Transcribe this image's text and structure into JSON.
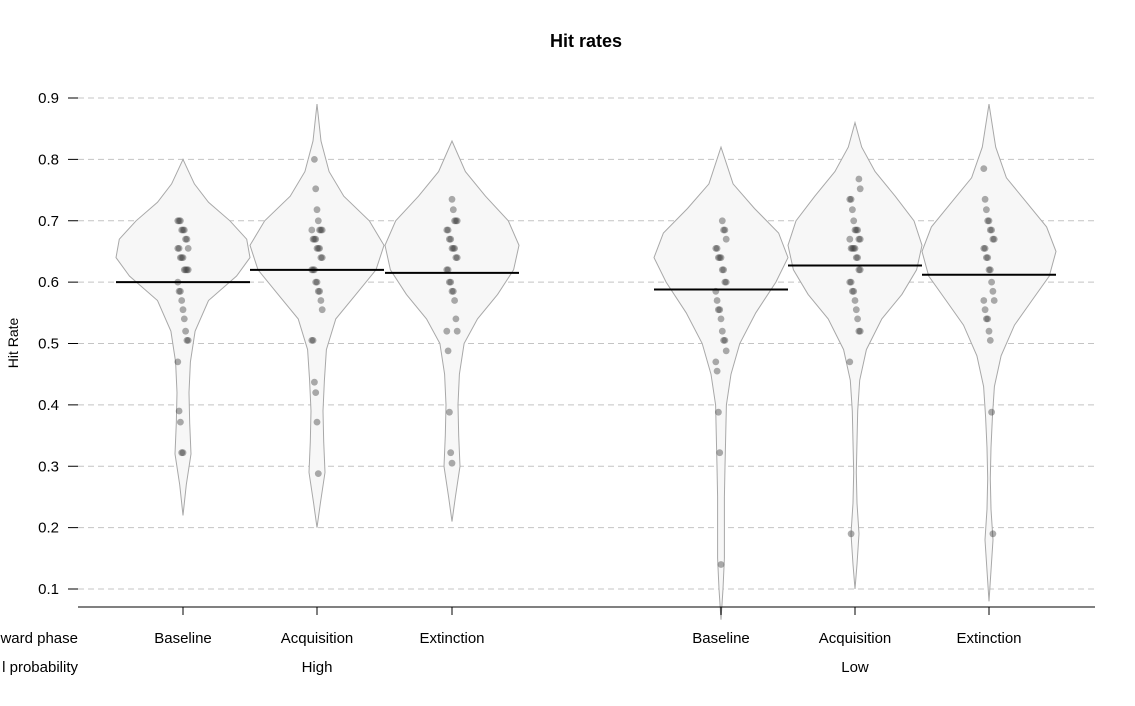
{
  "chart_data": {
    "type": "pirate",
    "title": "Hit rates",
    "ylabel": "Hit Rate",
    "xlabel": "",
    "ylim": [
      0.07,
      0.93
    ],
    "yticks": [
      0.1,
      0.2,
      0.3,
      0.4,
      0.5,
      0.6,
      0.7,
      0.8,
      0.9
    ],
    "grid": "horizontal-dashed",
    "row_labels": [
      "ward phase",
      "l probability"
    ],
    "groups": [
      {
        "label": "High",
        "categories": [
          {
            "name": "Baseline",
            "mean": 0.6,
            "range": [
              0.22,
              0.8
            ],
            "points": [
              0.7,
              0.7,
              0.7,
              0.685,
              0.685,
              0.685,
              0.67,
              0.67,
              0.655,
              0.655,
              0.655,
              0.64,
              0.64,
              0.64,
              0.62,
              0.62,
              0.62,
              0.62,
              0.6,
              0.585,
              0.585,
              0.57,
              0.555,
              0.54,
              0.52,
              0.505,
              0.505,
              0.47,
              0.39,
              0.372,
              0.322,
              0.322
            ],
            "density": [
              [
                0.22,
                0.0
              ],
              [
                0.27,
                0.05
              ],
              [
                0.32,
                0.12
              ],
              [
                0.37,
                0.1
              ],
              [
                0.42,
                0.09
              ],
              [
                0.47,
                0.11
              ],
              [
                0.52,
                0.18
              ],
              [
                0.57,
                0.38
              ],
              [
                0.61,
                0.8
              ],
              [
                0.64,
                1.0
              ],
              [
                0.67,
                0.95
              ],
              [
                0.7,
                0.7
              ],
              [
                0.73,
                0.38
              ],
              [
                0.76,
                0.17
              ],
              [
                0.8,
                0.0
              ]
            ]
          },
          {
            "name": "Acquisition",
            "mean": 0.62,
            "range": [
              0.2,
              0.89
            ],
            "points": [
              0.8,
              0.752,
              0.718,
              0.7,
              0.685,
              0.685,
              0.685,
              0.685,
              0.67,
              0.67,
              0.67,
              0.655,
              0.655,
              0.655,
              0.64,
              0.64,
              0.62,
              0.62,
              0.62,
              0.6,
              0.6,
              0.585,
              0.585,
              0.57,
              0.555,
              0.505,
              0.505,
              0.437,
              0.42,
              0.372,
              0.288
            ],
            "density": [
              [
                0.2,
                0.0
              ],
              [
                0.24,
                0.05
              ],
              [
                0.29,
                0.12
              ],
              [
                0.34,
                0.1
              ],
              [
                0.39,
                0.09
              ],
              [
                0.44,
                0.11
              ],
              [
                0.49,
                0.14
              ],
              [
                0.54,
                0.28
              ],
              [
                0.58,
                0.58
              ],
              [
                0.62,
                0.88
              ],
              [
                0.66,
                1.0
              ],
              [
                0.7,
                0.78
              ],
              [
                0.74,
                0.4
              ],
              [
                0.78,
                0.18
              ],
              [
                0.83,
                0.06
              ],
              [
                0.89,
                0.0
              ]
            ]
          },
          {
            "name": "Extinction",
            "mean": 0.615,
            "range": [
              0.21,
              0.83
            ],
            "points": [
              0.735,
              0.718,
              0.7,
              0.7,
              0.7,
              0.685,
              0.685,
              0.67,
              0.67,
              0.655,
              0.655,
              0.655,
              0.64,
              0.64,
              0.62,
              0.62,
              0.6,
              0.6,
              0.585,
              0.585,
              0.57,
              0.54,
              0.52,
              0.52,
              0.488,
              0.388,
              0.322,
              0.305
            ],
            "density": [
              [
                0.21,
                0.0
              ],
              [
                0.25,
                0.05
              ],
              [
                0.3,
                0.12
              ],
              [
                0.35,
                0.1
              ],
              [
                0.4,
                0.09
              ],
              [
                0.45,
                0.11
              ],
              [
                0.5,
                0.18
              ],
              [
                0.54,
                0.38
              ],
              [
                0.58,
                0.68
              ],
              [
                0.62,
                0.92
              ],
              [
                0.66,
                1.0
              ],
              [
                0.7,
                0.84
              ],
              [
                0.74,
                0.5
              ],
              [
                0.78,
                0.2
              ],
              [
                0.83,
                0.0
              ]
            ]
          }
        ]
      },
      {
        "label": "Low",
        "categories": [
          {
            "name": "Baseline",
            "mean": 0.588,
            "range": [
              0.05,
              0.82
            ],
            "points": [
              0.7,
              0.685,
              0.685,
              0.67,
              0.655,
              0.655,
              0.64,
              0.64,
              0.64,
              0.62,
              0.62,
              0.6,
              0.6,
              0.585,
              0.57,
              0.555,
              0.555,
              0.54,
              0.52,
              0.505,
              0.505,
              0.488,
              0.47,
              0.455,
              0.388,
              0.322,
              0.14
            ],
            "density": [
              [
                0.05,
                0.0
              ],
              [
                0.1,
                0.03
              ],
              [
                0.15,
                0.05
              ],
              [
                0.2,
                0.05
              ],
              [
                0.25,
                0.05
              ],
              [
                0.3,
                0.06
              ],
              [
                0.35,
                0.07
              ],
              [
                0.4,
                0.08
              ],
              [
                0.45,
                0.15
              ],
              [
                0.5,
                0.28
              ],
              [
                0.55,
                0.52
              ],
              [
                0.6,
                0.82
              ],
              [
                0.64,
                1.0
              ],
              [
                0.68,
                0.86
              ],
              [
                0.72,
                0.5
              ],
              [
                0.76,
                0.18
              ],
              [
                0.82,
                0.0
              ]
            ]
          },
          {
            "name": "Acquisition",
            "mean": 0.627,
            "range": [
              0.1,
              0.86
            ],
            "points": [
              0.768,
              0.752,
              0.735,
              0.735,
              0.718,
              0.7,
              0.685,
              0.685,
              0.685,
              0.67,
              0.67,
              0.67,
              0.655,
              0.655,
              0.655,
              0.655,
              0.64,
              0.64,
              0.62,
              0.62,
              0.6,
              0.6,
              0.585,
              0.585,
              0.57,
              0.555,
              0.54,
              0.52,
              0.52,
              0.47,
              0.19
            ],
            "density": [
              [
                0.1,
                0.0
              ],
              [
                0.14,
                0.03
              ],
              [
                0.19,
                0.06
              ],
              [
                0.24,
                0.03
              ],
              [
                0.29,
                0.02
              ],
              [
                0.34,
                0.03
              ],
              [
                0.39,
                0.04
              ],
              [
                0.44,
                0.07
              ],
              [
                0.49,
                0.17
              ],
              [
                0.54,
                0.4
              ],
              [
                0.58,
                0.7
              ],
              [
                0.62,
                0.92
              ],
              [
                0.66,
                1.0
              ],
              [
                0.7,
                0.88
              ],
              [
                0.74,
                0.6
              ],
              [
                0.78,
                0.3
              ],
              [
                0.82,
                0.1
              ],
              [
                0.86,
                0.0
              ]
            ]
          },
          {
            "name": "Extinction",
            "mean": 0.612,
            "range": [
              0.08,
              0.89
            ],
            "points": [
              0.785,
              0.735,
              0.718,
              0.7,
              0.7,
              0.685,
              0.685,
              0.67,
              0.67,
              0.655,
              0.655,
              0.64,
              0.64,
              0.62,
              0.62,
              0.6,
              0.585,
              0.57,
              0.57,
              0.555,
              0.54,
              0.54,
              0.52,
              0.505,
              0.388,
              0.19
            ],
            "density": [
              [
                0.08,
                0.0
              ],
              [
                0.13,
                0.03
              ],
              [
                0.18,
                0.06
              ],
              [
                0.23,
                0.03
              ],
              [
                0.28,
                0.02
              ],
              [
                0.33,
                0.03
              ],
              [
                0.38,
                0.05
              ],
              [
                0.43,
                0.08
              ],
              [
                0.48,
                0.18
              ],
              [
                0.53,
                0.38
              ],
              [
                0.57,
                0.64
              ],
              [
                0.61,
                0.9
              ],
              [
                0.65,
                1.0
              ],
              [
                0.69,
                0.86
              ],
              [
                0.73,
                0.56
              ],
              [
                0.77,
                0.26
              ],
              [
                0.82,
                0.1
              ],
              [
                0.89,
                0.0
              ]
            ]
          }
        ]
      }
    ]
  }
}
